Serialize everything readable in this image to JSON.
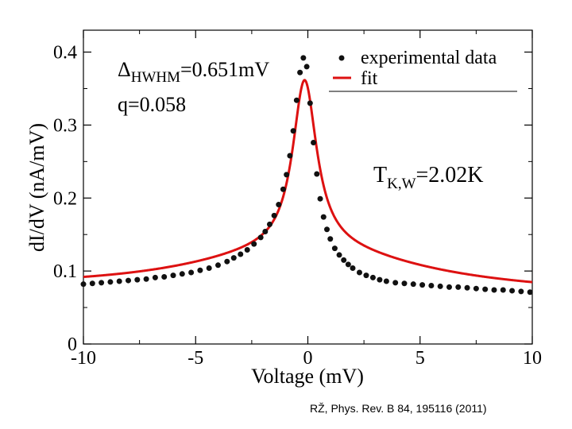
{
  "chart_data": {
    "type": "scatter",
    "xlabel": "Voltage (mV)",
    "ylabel": "dI/dV (nA/mV)",
    "xlim": [
      -10,
      10
    ],
    "ylim": [
      0,
      0.43
    ],
    "x_ticks": [
      -10,
      -5,
      0,
      5,
      10
    ],
    "x_tick_labels": [
      "-10",
      "-5",
      "0",
      "5",
      "10"
    ],
    "y_ticks": [
      0,
      0.1,
      0.2,
      0.3,
      0.4
    ],
    "y_tick_labels": [
      "0",
      "0.1",
      "0.2",
      "0.3",
      "0.4"
    ],
    "legend": {
      "position": "top-right",
      "entries": [
        {
          "label": "experimental data",
          "marker": "dot",
          "color": "#111111"
        },
        {
          "label": "fit",
          "marker": "line",
          "color": "#dd1111"
        }
      ]
    },
    "annotations": {
      "delta_symbol": "Δ",
      "delta_subscript": "HWHM",
      "delta_value": "=0.651mV",
      "q": "q=0.058",
      "tk_symbol": "T",
      "tk_subscript": "K,W",
      "tk_value": "=2.02K"
    },
    "fit_model": {
      "kind": "fano",
      "center": -0.15,
      "hwhm": 0.651,
      "q": 0.058,
      "baseline_left": 0.075,
      "baseline_right": 0.068,
      "wing_amplitude": 0.06,
      "wing_width": 6.0,
      "peak_amplitude": 0.23
    },
    "series": [
      {
        "name": "experimental data",
        "style": "dots",
        "color": "#111111",
        "x": [
          -10.0,
          -9.6,
          -9.2,
          -8.8,
          -8.4,
          -8.0,
          -7.6,
          -7.2,
          -6.8,
          -6.4,
          -6.0,
          -5.6,
          -5.2,
          -4.8,
          -4.4,
          -4.0,
          -3.6,
          -3.3,
          -3.0,
          -2.7,
          -2.4,
          -2.1,
          -1.9,
          -1.7,
          -1.5,
          -1.3,
          -1.1,
          -0.95,
          -0.8,
          -0.65,
          -0.5,
          -0.35,
          -0.2,
          -0.05,
          0.1,
          0.25,
          0.4,
          0.55,
          0.7,
          0.85,
          1.0,
          1.2,
          1.4,
          1.6,
          1.8,
          2.0,
          2.3,
          2.6,
          2.9,
          3.2,
          3.5,
          3.9,
          4.3,
          4.7,
          5.1,
          5.5,
          5.9,
          6.3,
          6.7,
          7.1,
          7.5,
          7.9,
          8.3,
          8.7,
          9.1,
          9.5,
          9.9
        ],
        "y": [
          0.082,
          0.083,
          0.084,
          0.085,
          0.086,
          0.087,
          0.088,
          0.089,
          0.091,
          0.092,
          0.094,
          0.096,
          0.098,
          0.101,
          0.104,
          0.108,
          0.113,
          0.118,
          0.123,
          0.129,
          0.137,
          0.146,
          0.154,
          0.164,
          0.176,
          0.191,
          0.212,
          0.232,
          0.258,
          0.292,
          0.334,
          0.372,
          0.392,
          0.38,
          0.33,
          0.276,
          0.233,
          0.199,
          0.174,
          0.157,
          0.144,
          0.131,
          0.122,
          0.115,
          0.109,
          0.104,
          0.098,
          0.094,
          0.091,
          0.088,
          0.086,
          0.084,
          0.083,
          0.082,
          0.081,
          0.08,
          0.079,
          0.078,
          0.078,
          0.077,
          0.076,
          0.075,
          0.074,
          0.074,
          0.073,
          0.072,
          0.071
        ]
      },
      {
        "name": "fit",
        "style": "line",
        "color": "#dd1111"
      }
    ]
  },
  "citation": "RŽ, Phys. Rev. B 84, 195116 (2011)"
}
